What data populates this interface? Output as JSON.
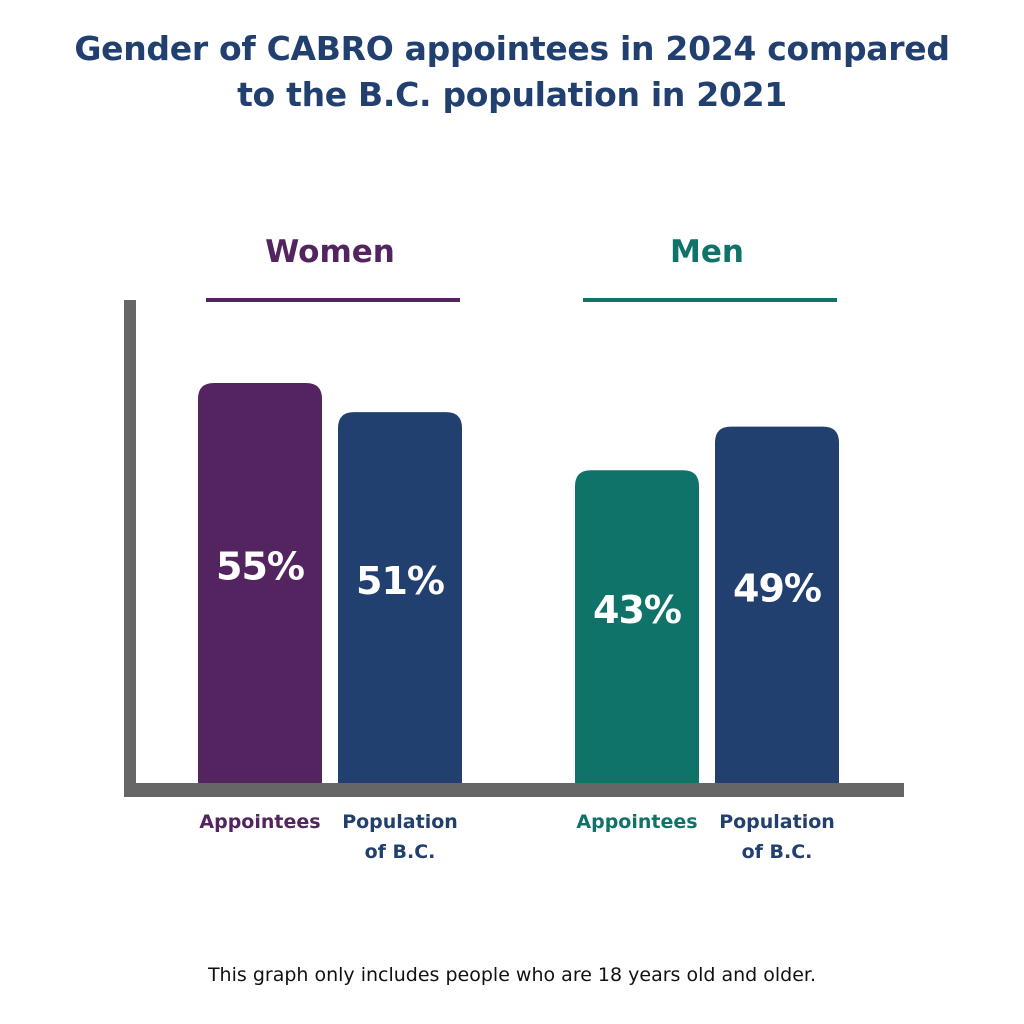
{
  "title": {
    "line1": "Gender of CABRO appointees in 2024 compared",
    "line2": "to the B.C. population in 2021"
  },
  "footnote": "This graph only includes people who are 18 years old and older.",
  "colors": {
    "title": "#22406f",
    "women": "#53245f",
    "men": "#10736a",
    "population": "#22406f",
    "axis": "#666666",
    "value_text": "#ffffff"
  },
  "chart_data": {
    "type": "bar",
    "title": "Gender of CABRO appointees in 2024 compared to the B.C. population in 2021",
    "xlabel": "",
    "ylabel": "",
    "ylim": [
      0,
      68
    ],
    "grid": false,
    "legend": "none",
    "value_unit": "%",
    "groups": [
      {
        "name": "Women",
        "color": "#53245f",
        "bars": [
          {
            "category": "Appointees",
            "label_lines": [
              "Appointees"
            ],
            "value": 55,
            "display": "55%",
            "color": "#53245f",
            "label_color": "#53245f"
          },
          {
            "category": "Population of B.C.",
            "label_lines": [
              "Population",
              "of B.C."
            ],
            "value": 51,
            "display": "51%",
            "color": "#22406f",
            "label_color": "#22406f"
          }
        ]
      },
      {
        "name": "Men",
        "color": "#10736a",
        "bars": [
          {
            "category": "Appointees",
            "label_lines": [
              "Appointees"
            ],
            "value": 43,
            "display": "43%",
            "color": "#10736a",
            "label_color": "#10736a"
          },
          {
            "category": "Population of B.C.",
            "label_lines": [
              "Population",
              "of B.C."
            ],
            "value": 49,
            "display": "49%",
            "color": "#22406f",
            "label_color": "#22406f"
          }
        ]
      }
    ]
  }
}
